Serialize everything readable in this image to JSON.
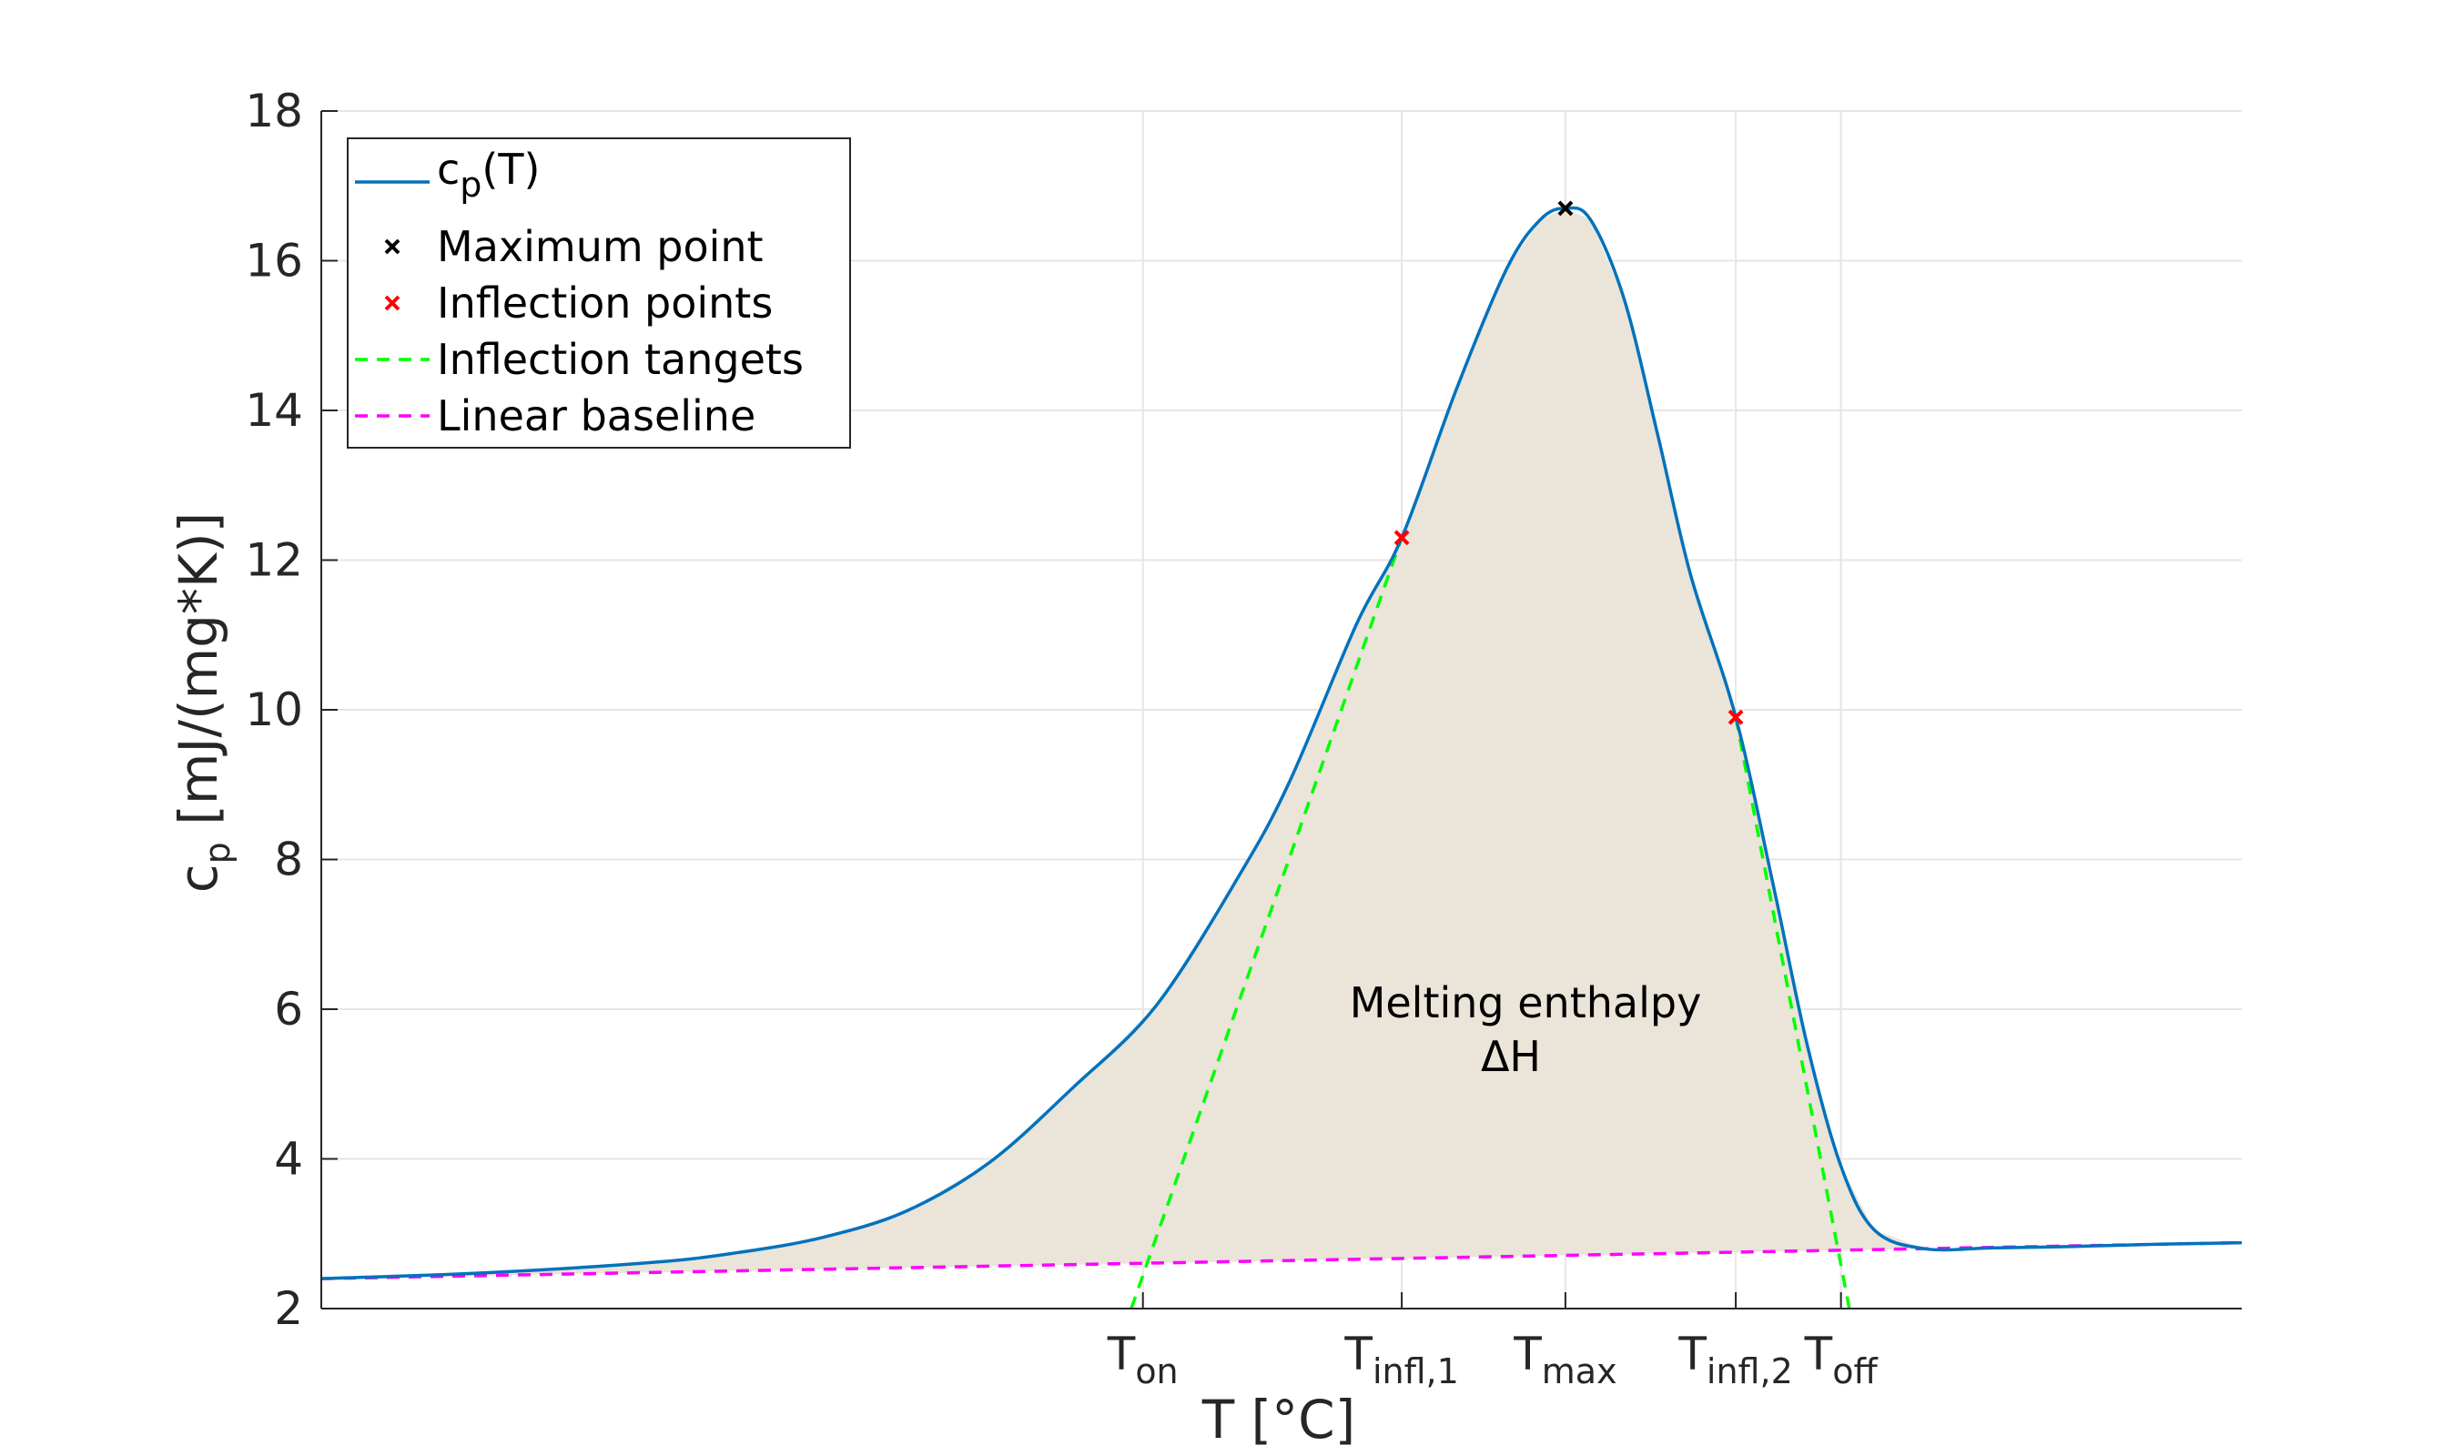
{
  "chart_data": {
    "type": "line",
    "xlabel": "T [°C]",
    "ylabel_main": "c",
    "ylabel_sub": "p",
    "ylabel_rest": " [mJ/(mg*K)]",
    "xlim": [
      0,
      115
    ],
    "ylim": [
      2,
      18
    ],
    "yticks": [
      2,
      4,
      6,
      8,
      10,
      12,
      14,
      16,
      18
    ],
    "grid": true,
    "legend_position": "top-left",
    "xticks": [
      {
        "x": 49.2,
        "main": "T",
        "sub": "on"
      },
      {
        "x": 64.7,
        "main": "T",
        "sub": "infl,1"
      },
      {
        "x": 74.5,
        "main": "T",
        "sub": "max"
      },
      {
        "x": 84.7,
        "main": "T",
        "sub": "infl,2"
      },
      {
        "x": 91.0,
        "main": "T",
        "sub": "off"
      }
    ],
    "annotation": {
      "line1": "Melting enthalpy",
      "line2": "ΔH"
    },
    "colors": {
      "curve": "#0072BD",
      "fill": "#EAE4D9",
      "maximum": "#000000",
      "inflection": "#FF0000",
      "tangent": "#00FF00",
      "baseline": "#FF00FF",
      "grid": "#E6E6E6",
      "axis": "#262626"
    },
    "series": [
      {
        "name": "c_p(T)",
        "legend_main": "c",
        "legend_sub": "p",
        "legend_rest": "(T)",
        "x": [
          0,
          10,
          20,
          25,
          30,
          35,
          40,
          45,
          50,
          55,
          58,
          62,
          64.7,
          68,
          71,
          73,
          74.5,
          76,
          78,
          80,
          82,
          84.7,
          87,
          89,
          91,
          93,
          96,
          100,
          105,
          110,
          115
        ],
        "y": [
          2.4,
          2.48,
          2.62,
          2.75,
          2.95,
          3.3,
          3.95,
          4.95,
          6.05,
          7.8,
          9.05,
          11.15,
          12.3,
          14.3,
          15.9,
          16.55,
          16.7,
          16.55,
          15.5,
          13.7,
          11.8,
          9.9,
          7.6,
          5.5,
          3.9,
          3.05,
          2.8,
          2.81,
          2.83,
          2.86,
          2.88
        ]
      },
      {
        "name": "Maximum point",
        "x": [
          74.5
        ],
        "y": [
          16.7
        ]
      },
      {
        "name": "Inflection points",
        "x": [
          64.7,
          84.7
        ],
        "y": [
          12.3,
          9.9
        ]
      },
      {
        "name": "Inflection tangets",
        "x": [
          48.5,
          64.7,
          84.7,
          91.5
        ],
        "y": [
          2.0,
          12.3,
          9.9,
          2.0
        ]
      },
      {
        "name": "Linear baseline",
        "x": [
          0,
          115
        ],
        "y": [
          2.4,
          2.88
        ]
      }
    ]
  }
}
